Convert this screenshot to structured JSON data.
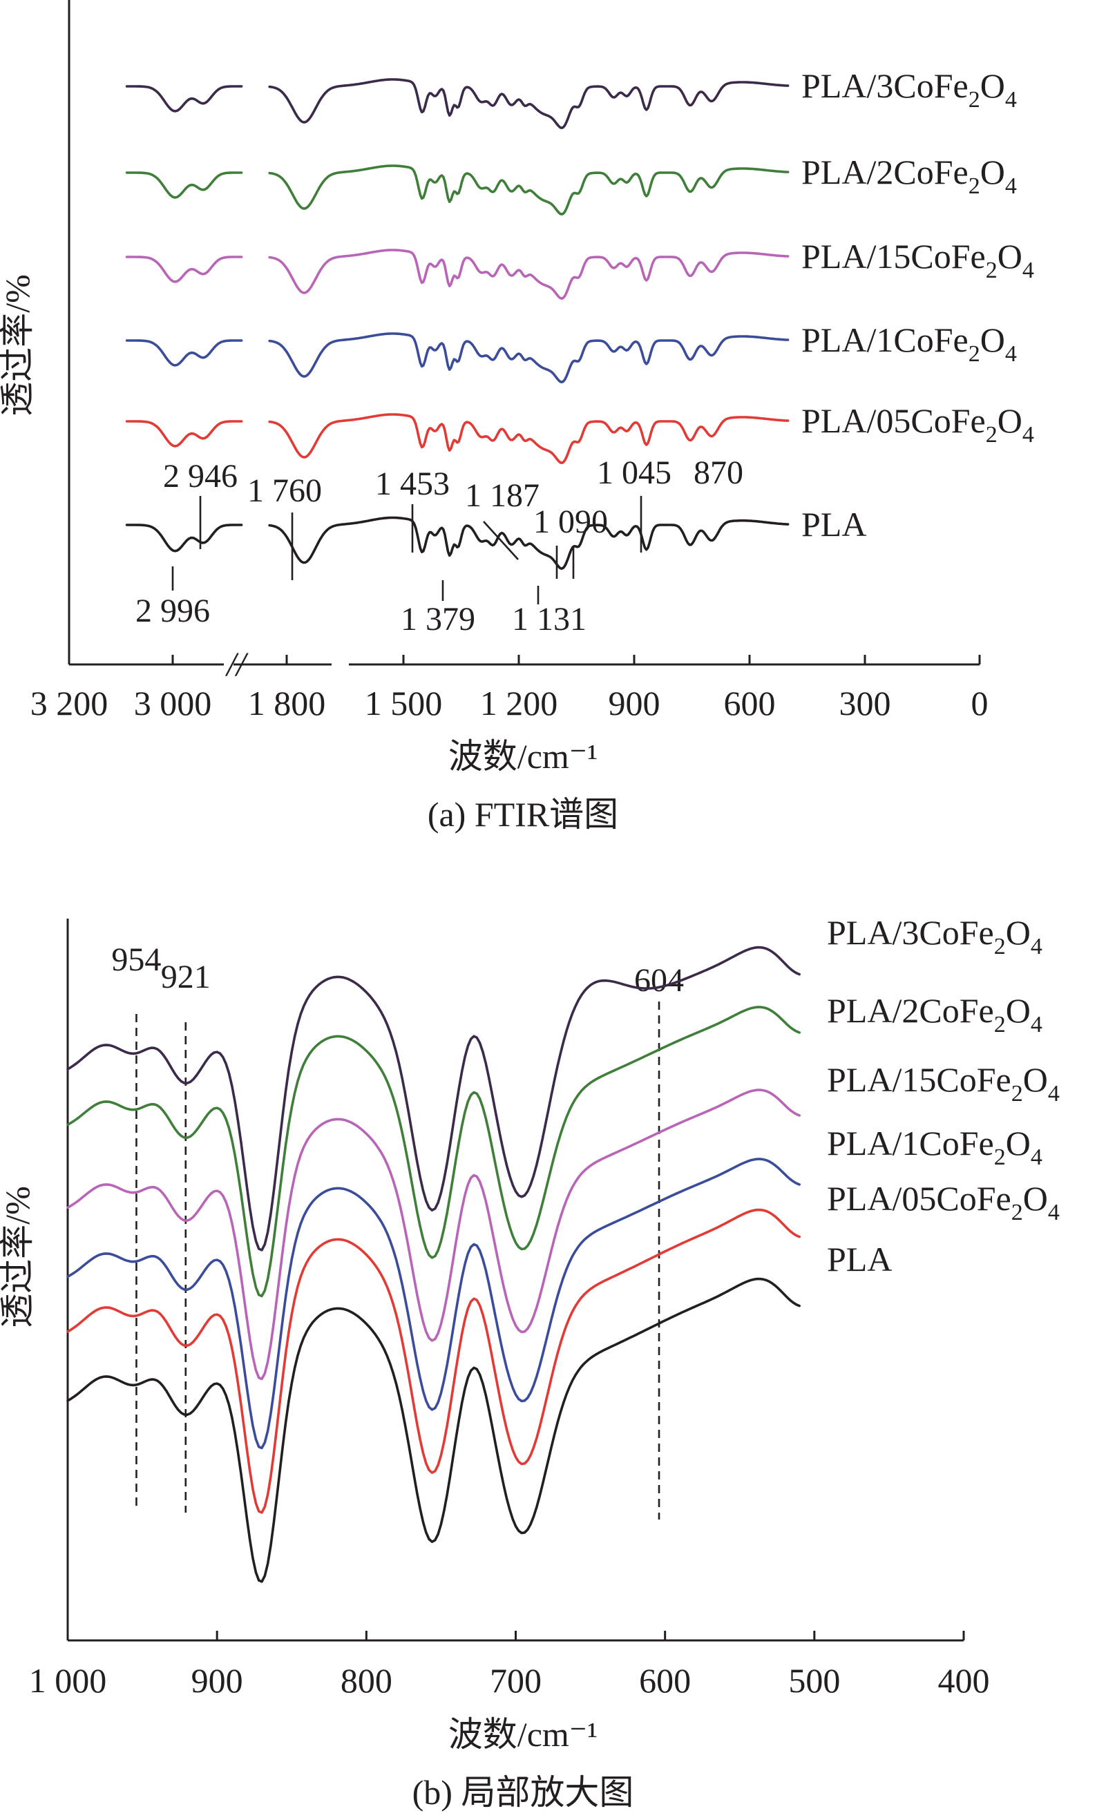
{
  "chart_data": [
    {
      "type": "line",
      "caption": "(a) FTIR谱图",
      "xlabel": "波数/cm⁻¹",
      "ylabel": "透过率/%",
      "x_ticks": [
        "3 200",
        "3 000",
        "1 800",
        "1 500",
        "1 200",
        "900",
        "600",
        "300",
        "0"
      ],
      "x_break": "//",
      "series": [
        {
          "name": "PLA/3CoFe₂O₄",
          "color": "#3b2a4a"
        },
        {
          "name": "PLA/2CoFe₂O₄",
          "color": "#3f7f3a"
        },
        {
          "name": "PLA/15CoFe₂O₄",
          "color": "#b865b8"
        },
        {
          "name": "PLA/1CoFe₂O₄",
          "color": "#3b4d9a"
        },
        {
          "name": "PLA/05CoFe₂O₄",
          "color": "#e23a35"
        },
        {
          "name": "PLA",
          "color": "#231f20"
        }
      ],
      "peak_labels": [
        {
          "text": "2 946",
          "x": 2946
        },
        {
          "text": "2 996",
          "x": 2996
        },
        {
          "text": "1 760",
          "x": 1760
        },
        {
          "text": "1 453",
          "x": 1453
        },
        {
          "text": "1 379",
          "x": 1379
        },
        {
          "text": "1 187",
          "x": 1187
        },
        {
          "text": "1 131",
          "x": 1131
        },
        {
          "text": "1 090",
          "x": 1090
        },
        {
          "text": "1 045",
          "x": 1045
        },
        {
          "text": "870",
          "x": 870
        }
      ]
    },
    {
      "type": "line",
      "caption": "(b) 局部放大图",
      "xlabel": "波数/cm⁻¹",
      "ylabel": "透过率/%",
      "xlim": [
        1000,
        400
      ],
      "x_ticks": [
        "1 000",
        "900",
        "800",
        "700",
        "600",
        "500",
        "400"
      ],
      "series": [
        {
          "name": "PLA/3CoFe₂O₄",
          "color": "#3b2a4a"
        },
        {
          "name": "PLA/2CoFe₂O₄",
          "color": "#3f7f3a"
        },
        {
          "name": "PLA/15CoFe₂O₄",
          "color": "#b865b8"
        },
        {
          "name": "PLA/1CoFe₂O₄",
          "color": "#3b4d9a"
        },
        {
          "name": "PLA/05CoFe₂O₄",
          "color": "#e23a35"
        },
        {
          "name": "PLA",
          "color": "#231f20"
        }
      ],
      "reference_lines": [
        {
          "text": "954",
          "x": 954
        },
        {
          "text": "921",
          "x": 921
        },
        {
          "text": "604",
          "x": 604
        }
      ]
    }
  ]
}
